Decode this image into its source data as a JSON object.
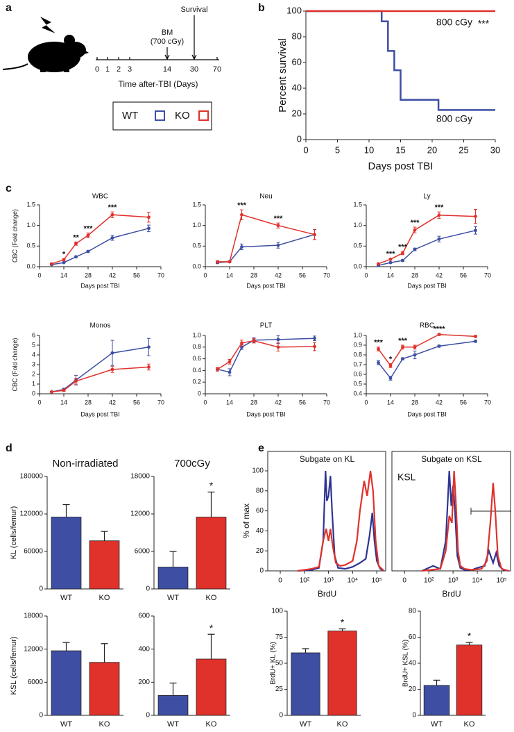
{
  "panel_labels": [
    "a",
    "b",
    "c",
    "d",
    "e"
  ],
  "timeline": {
    "ticks": [
      0,
      1,
      2,
      3,
      14,
      30,
      70
    ],
    "label": "Time after-TBI (Days)",
    "bm": [
      "BM",
      "(700 cGy)"
    ],
    "survival": "Survival"
  },
  "chart_data": [
    {
      "type": "line",
      "step": true,
      "ylabel": "Percent survival",
      "xlabel": "Days post TBI",
      "xlim": [
        0,
        30
      ],
      "xticks": [
        0,
        5,
        10,
        15,
        20,
        25,
        30
      ],
      "ylim": [
        0,
        100
      ],
      "yticks": [
        0,
        20,
        40,
        60,
        80,
        100
      ],
      "series": [
        {
          "name": "WT",
          "color": "#3d4ea3",
          "x": [
            0,
            12,
            12,
            13,
            13,
            14,
            14,
            15,
            15,
            21,
            21,
            30
          ],
          "values": [
            100,
            100,
            92,
            92,
            69,
            69,
            54,
            54,
            31,
            31,
            23,
            23
          ]
        },
        {
          "name": "KO",
          "color": "#e0312b",
          "x": [
            0,
            30
          ],
          "values": [
            100,
            100
          ]
        }
      ],
      "annotations": [
        "800 cGy",
        "***",
        "800 cGy"
      ]
    },
    {
      "type": "line",
      "title": "WBC",
      "xlabel": "Days post TBI",
      "ylabel": "CBC (Fold change)",
      "xlim": [
        0,
        70
      ],
      "xticks": [
        0,
        14,
        28,
        42,
        56,
        70
      ],
      "ylim": [
        0,
        1.5
      ],
      "yticks": [
        {
          "value": 0,
          "label": "0.0"
        },
        0.5,
        {
          "value": 1,
          "label": "1.0"
        },
        1.5
      ],
      "series": [
        {
          "color": "#3d4ea3",
          "x": [
            7,
            14,
            21,
            28,
            42,
            63
          ],
          "values": [
            0.05,
            0.1,
            0.24,
            0.37,
            0.7,
            0.93
          ],
          "errors": [
            0.01,
            0.01,
            0.02,
            0.02,
            0.06,
            0.08
          ]
        },
        {
          "color": "#e0312b",
          "x": [
            7,
            14,
            21,
            28,
            42,
            63
          ],
          "values": [
            0.07,
            0.17,
            0.56,
            0.76,
            1.26,
            1.2
          ],
          "errors": [
            0.01,
            0.02,
            0.04,
            0.06,
            0.07,
            0.12
          ]
        }
      ],
      "annotations": [
        {
          "x": 14,
          "text": "*"
        },
        {
          "x": 21,
          "text": "**"
        },
        {
          "x": 28,
          "text": "***"
        },
        {
          "x": 42,
          "text": "***"
        }
      ]
    },
    {
      "type": "line",
      "title": "Neu",
      "xlabel": "Days post TBI",
      "xlim": [
        0,
        70
      ],
      "xticks": [
        0,
        14,
        28,
        42,
        56,
        70
      ],
      "ylim": [
        0,
        1.5
      ],
      "yticks": [
        {
          "value": 0,
          "label": "0.0"
        },
        0.5,
        {
          "value": 1,
          "label": "1.0"
        },
        1.5
      ],
      "series": [
        {
          "color": "#3d4ea3",
          "x": [
            7,
            14,
            21,
            42,
            63
          ],
          "values": [
            0.1,
            0.12,
            0.48,
            0.52,
            0.78
          ],
          "errors": [
            0.02,
            0.02,
            0.07,
            0.07,
            0.12
          ]
        },
        {
          "color": "#e0312b",
          "x": [
            7,
            14,
            21,
            42,
            63
          ],
          "values": [
            0.12,
            0.12,
            1.26,
            1.0,
            0.78
          ],
          "errors": [
            0.02,
            0.02,
            0.12,
            0.06,
            0.12
          ]
        }
      ],
      "annotations": [
        {
          "x": 21,
          "text": "***"
        },
        {
          "x": 42,
          "text": "***"
        }
      ]
    },
    {
      "type": "line",
      "title": "Ly",
      "xlabel": "Days post TBI",
      "xlim": [
        0,
        70
      ],
      "xticks": [
        0,
        14,
        28,
        42,
        56,
        70
      ],
      "ylim": [
        0,
        1.5
      ],
      "yticks": [
        {
          "value": 0,
          "label": "0.0"
        },
        0.5,
        {
          "value": 1,
          "label": "1.0"
        },
        1.5
      ],
      "series": [
        {
          "color": "#3d4ea3",
          "x": [
            7,
            14,
            21,
            28,
            42,
            63
          ],
          "values": [
            0.03,
            0.1,
            0.15,
            0.42,
            0.67,
            0.88
          ],
          "errors": [
            0.01,
            0.01,
            0.02,
            0.03,
            0.07,
            0.09
          ]
        },
        {
          "color": "#e0312b",
          "x": [
            7,
            14,
            21,
            28,
            42,
            63
          ],
          "values": [
            0.07,
            0.18,
            0.33,
            0.89,
            1.25,
            1.22
          ],
          "errors": [
            0.01,
            0.02,
            0.04,
            0.07,
            0.08,
            0.17
          ]
        }
      ],
      "annotations": [
        {
          "x": 14,
          "text": "***"
        },
        {
          "x": 21,
          "text": "***"
        },
        {
          "x": 28,
          "text": "***"
        },
        {
          "x": 42,
          "text": "***"
        }
      ]
    },
    {
      "type": "line",
      "title": "Monos",
      "xlabel": "Days post TBI",
      "ylabel": "CBC (Fold change)",
      "xlim": [
        0,
        70
      ],
      "xticks": [
        0,
        14,
        28,
        42,
        56,
        70
      ],
      "ylim": [
        0,
        6
      ],
      "yticks": [
        0,
        1,
        2,
        3,
        4,
        5,
        6
      ],
      "series": [
        {
          "color": "#3d4ea3",
          "x": [
            7,
            14,
            21,
            42,
            63
          ],
          "values": [
            0.2,
            0.45,
            1.4,
            4.2,
            4.8
          ],
          "errors": [
            0.05,
            0.1,
            0.5,
            1.3,
            0.9
          ]
        },
        {
          "color": "#e0312b",
          "x": [
            7,
            14,
            21,
            42,
            63
          ],
          "values": [
            0.2,
            0.35,
            1.3,
            2.5,
            2.75
          ],
          "errors": [
            0.05,
            0.1,
            0.3,
            0.3,
            0.3
          ]
        }
      ]
    },
    {
      "type": "line",
      "title": "PLT",
      "xlabel": "Days post TBI",
      "xlim": [
        0,
        70
      ],
      "xticks": [
        0,
        14,
        28,
        42,
        56,
        70
      ],
      "ylim": [
        0,
        1
      ],
      "yticks": [
        0,
        0.2,
        0.4,
        0.6,
        0.8,
        {
          "value": 1,
          "label": "1.0"
        }
      ],
      "series": [
        {
          "color": "#3d4ea3",
          "x": [
            7,
            14,
            21,
            28,
            42,
            63
          ],
          "values": [
            0.42,
            0.37,
            0.8,
            0.92,
            0.93,
            0.95
          ],
          "errors": [
            0.03,
            0.06,
            0.04,
            0.04,
            0.07,
            0.04
          ]
        },
        {
          "color": "#e0312b",
          "x": [
            7,
            14,
            21,
            28,
            42,
            63
          ],
          "values": [
            0.42,
            0.55,
            0.87,
            0.91,
            0.8,
            0.81
          ],
          "errors": [
            0.03,
            0.04,
            0.05,
            0.04,
            0.07,
            0.07
          ]
        }
      ]
    },
    {
      "type": "line",
      "title": "RBC",
      "xlabel": "Days post TBI",
      "xlim": [
        0,
        70
      ],
      "xticks": [
        0,
        14,
        28,
        42,
        56,
        70
      ],
      "ylim": [
        0.4,
        1
      ],
      "yticks": [
        0.4,
        0.5,
        0.6,
        0.7,
        0.8,
        0.9,
        {
          "value": 1,
          "label": "1.0"
        }
      ],
      "series": [
        {
          "color": "#3d4ea3",
          "x": [
            7,
            14,
            21,
            28,
            42,
            63
          ],
          "values": [
            0.72,
            0.56,
            0.76,
            0.8,
            0.89,
            0.94
          ],
          "errors": [
            0.02,
            0.02,
            0.01,
            0.04,
            0.01,
            0.01
          ]
        },
        {
          "color": "#e0312b",
          "x": [
            7,
            14,
            21,
            28,
            42,
            63
          ],
          "values": [
            0.86,
            0.69,
            0.88,
            0.88,
            1.01,
            0.99
          ],
          "errors": [
            0.02,
            0.02,
            0.02,
            0.02,
            0.01,
            0.01
          ]
        }
      ],
      "annotations": [
        {
          "x": 7,
          "text": "***"
        },
        {
          "x": 14,
          "text": "*"
        },
        {
          "x": 21,
          "text": "***"
        },
        {
          "x": 42,
          "text": "****"
        }
      ]
    },
    {
      "type": "bar",
      "title": "Non-irradiated",
      "ylabel": "KL (cells/femur)",
      "categories": [
        "WT",
        "KO"
      ],
      "colors": [
        "#3d4ea3",
        "#e0312b"
      ],
      "values": [
        115000,
        77000
      ],
      "errors": [
        20000,
        15000
      ],
      "ylim": [
        0,
        180000
      ],
      "yticks": [
        0,
        60000,
        120000,
        180000
      ]
    },
    {
      "type": "bar",
      "title": "700cGy",
      "categories": [
        "WT",
        "KO"
      ],
      "colors": [
        "#3d4ea3",
        "#e0312b"
      ],
      "values": [
        3500,
        11500
      ],
      "errors": [
        2500,
        4000
      ],
      "ylim": [
        0,
        18000
      ],
      "yticks": [
        0,
        6000,
        12000,
        18000
      ],
      "annotations": [
        {
          "x": "KO",
          "text": "*"
        }
      ]
    },
    {
      "type": "bar",
      "ylabel": "KSL (cells/femur)",
      "categories": [
        "WT",
        "KO"
      ],
      "colors": [
        "#3d4ea3",
        "#e0312b"
      ],
      "values": [
        11700,
        9600
      ],
      "errors": [
        1500,
        3400
      ],
      "ylim": [
        0,
        18000
      ],
      "yticks": [
        0,
        6000,
        12000,
        18000
      ]
    },
    {
      "type": "bar",
      "categories": [
        "WT",
        "KO"
      ],
      "colors": [
        "#3d4ea3",
        "#e0312b"
      ],
      "values": [
        120,
        340
      ],
      "errors": [
        75,
        150
      ],
      "ylim": [
        0,
        600
      ],
      "yticks": [
        0,
        200,
        400,
        600
      ],
      "annotations": [
        {
          "x": "KO",
          "text": "*"
        }
      ]
    },
    {
      "type": "flow",
      "title": "Subgate on KL",
      "xlabel": "BrdU",
      "ylabel": "% of max",
      "xscale": "biexponential",
      "xlim": [
        -30,
        250000
      ],
      "xticks": [
        0,
        {
          "value": 100,
          "label": "10²"
        },
        {
          "value": 1000,
          "label": "10³"
        },
        {
          "value": 10000,
          "label": "10⁴"
        },
        {
          "value": 100000,
          "label": "10⁵"
        }
      ],
      "ylim": [
        0,
        100
      ],
      "yticks": [
        0,
        20,
        40,
        60,
        80,
        100
      ],
      "series": [
        {
          "color": "#2e3591",
          "x": [
            50,
            200,
            400,
            600,
            750,
            850,
            1000,
            1200,
            1400,
            1800,
            2500,
            5000,
            10000,
            20000,
            35000,
            50000,
            65000,
            80000,
            100000,
            140000,
            200000
          ],
          "values": [
            0,
            1,
            3,
            30,
            100,
            70,
            75,
            95,
            60,
            15,
            3,
            2,
            4,
            8,
            12,
            35,
            58,
            30,
            10,
            2,
            0
          ]
        },
        {
          "color": "#e0312b",
          "x": [
            50,
            200,
            400,
            600,
            800,
            1000,
            1200,
            1500,
            2000,
            3000,
            5000,
            10000,
            15000,
            20000,
            30000,
            40000,
            55000,
            70000,
            90000,
            120000,
            200000
          ],
          "values": [
            0,
            2,
            4,
            30,
            42,
            30,
            42,
            25,
            8,
            5,
            6,
            10,
            30,
            60,
            90,
            75,
            100,
            80,
            30,
            5,
            0
          ]
        }
      ]
    },
    {
      "type": "flow",
      "title": "Subgate on KSL",
      "inset_label": "KSL",
      "xlabel": "BrdU",
      "xscale": "biexponential",
      "xlim": [
        -30,
        250000
      ],
      "xticks": [
        0,
        {
          "value": 100,
          "label": "10²"
        },
        {
          "value": 1000,
          "label": "10³"
        },
        {
          "value": 10000,
          "label": "10⁴"
        },
        {
          "value": 100000,
          "label": "10⁵"
        }
      ],
      "ylim": [
        0,
        100
      ],
      "series": [
        {
          "color": "#2e3591",
          "x": [
            50,
            150,
            300,
            500,
            700,
            850,
            1000,
            1200,
            1500,
            2000,
            3000,
            6000,
            10000,
            20000,
            30000,
            45000,
            60000,
            80000,
            120000,
            200000
          ],
          "values": [
            0,
            5,
            2,
            30,
            100,
            65,
            85,
            60,
            15,
            3,
            1,
            1,
            3,
            5,
            20,
            8,
            18,
            5,
            1,
            0
          ]
        },
        {
          "color": "#e0312b",
          "x": [
            50,
            300,
            500,
            700,
            900,
            1100,
            1300,
            1600,
            2000,
            3000,
            6000,
            15000,
            25000,
            35000,
            45000,
            55000,
            70000,
            100000,
            200000
          ],
          "values": [
            0,
            2,
            20,
            55,
            48,
            100,
            70,
            20,
            5,
            2,
            1,
            2,
            10,
            50,
            88,
            60,
            15,
            2,
            0
          ]
        }
      ]
    },
    {
      "type": "bar",
      "ylabel": "BrdU+ KL (%)",
      "categories": [
        "WT",
        "KO"
      ],
      "colors": [
        "#3d4ea3",
        "#e0312b"
      ],
      "values": [
        60,
        81
      ],
      "errors": [
        4,
        2
      ],
      "ylim": [
        0,
        100
      ],
      "yticks": [
        0,
        25,
        50,
        75,
        100
      ],
      "annotations": [
        {
          "x": "KO",
          "text": "*"
        }
      ]
    },
    {
      "type": "bar",
      "ylabel": "BrdU+ KSL (%)",
      "categories": [
        "WT",
        "KO"
      ],
      "colors": [
        "#3d4ea3",
        "#e0312b"
      ],
      "values": [
        23,
        54
      ],
      "errors": [
        4,
        2
      ],
      "ylim": [
        0,
        80
      ],
      "yticks": [
        0,
        20,
        40,
        60,
        80
      ],
      "annotations": [
        {
          "x": "KO",
          "text": "*"
        }
      ]
    }
  ]
}
